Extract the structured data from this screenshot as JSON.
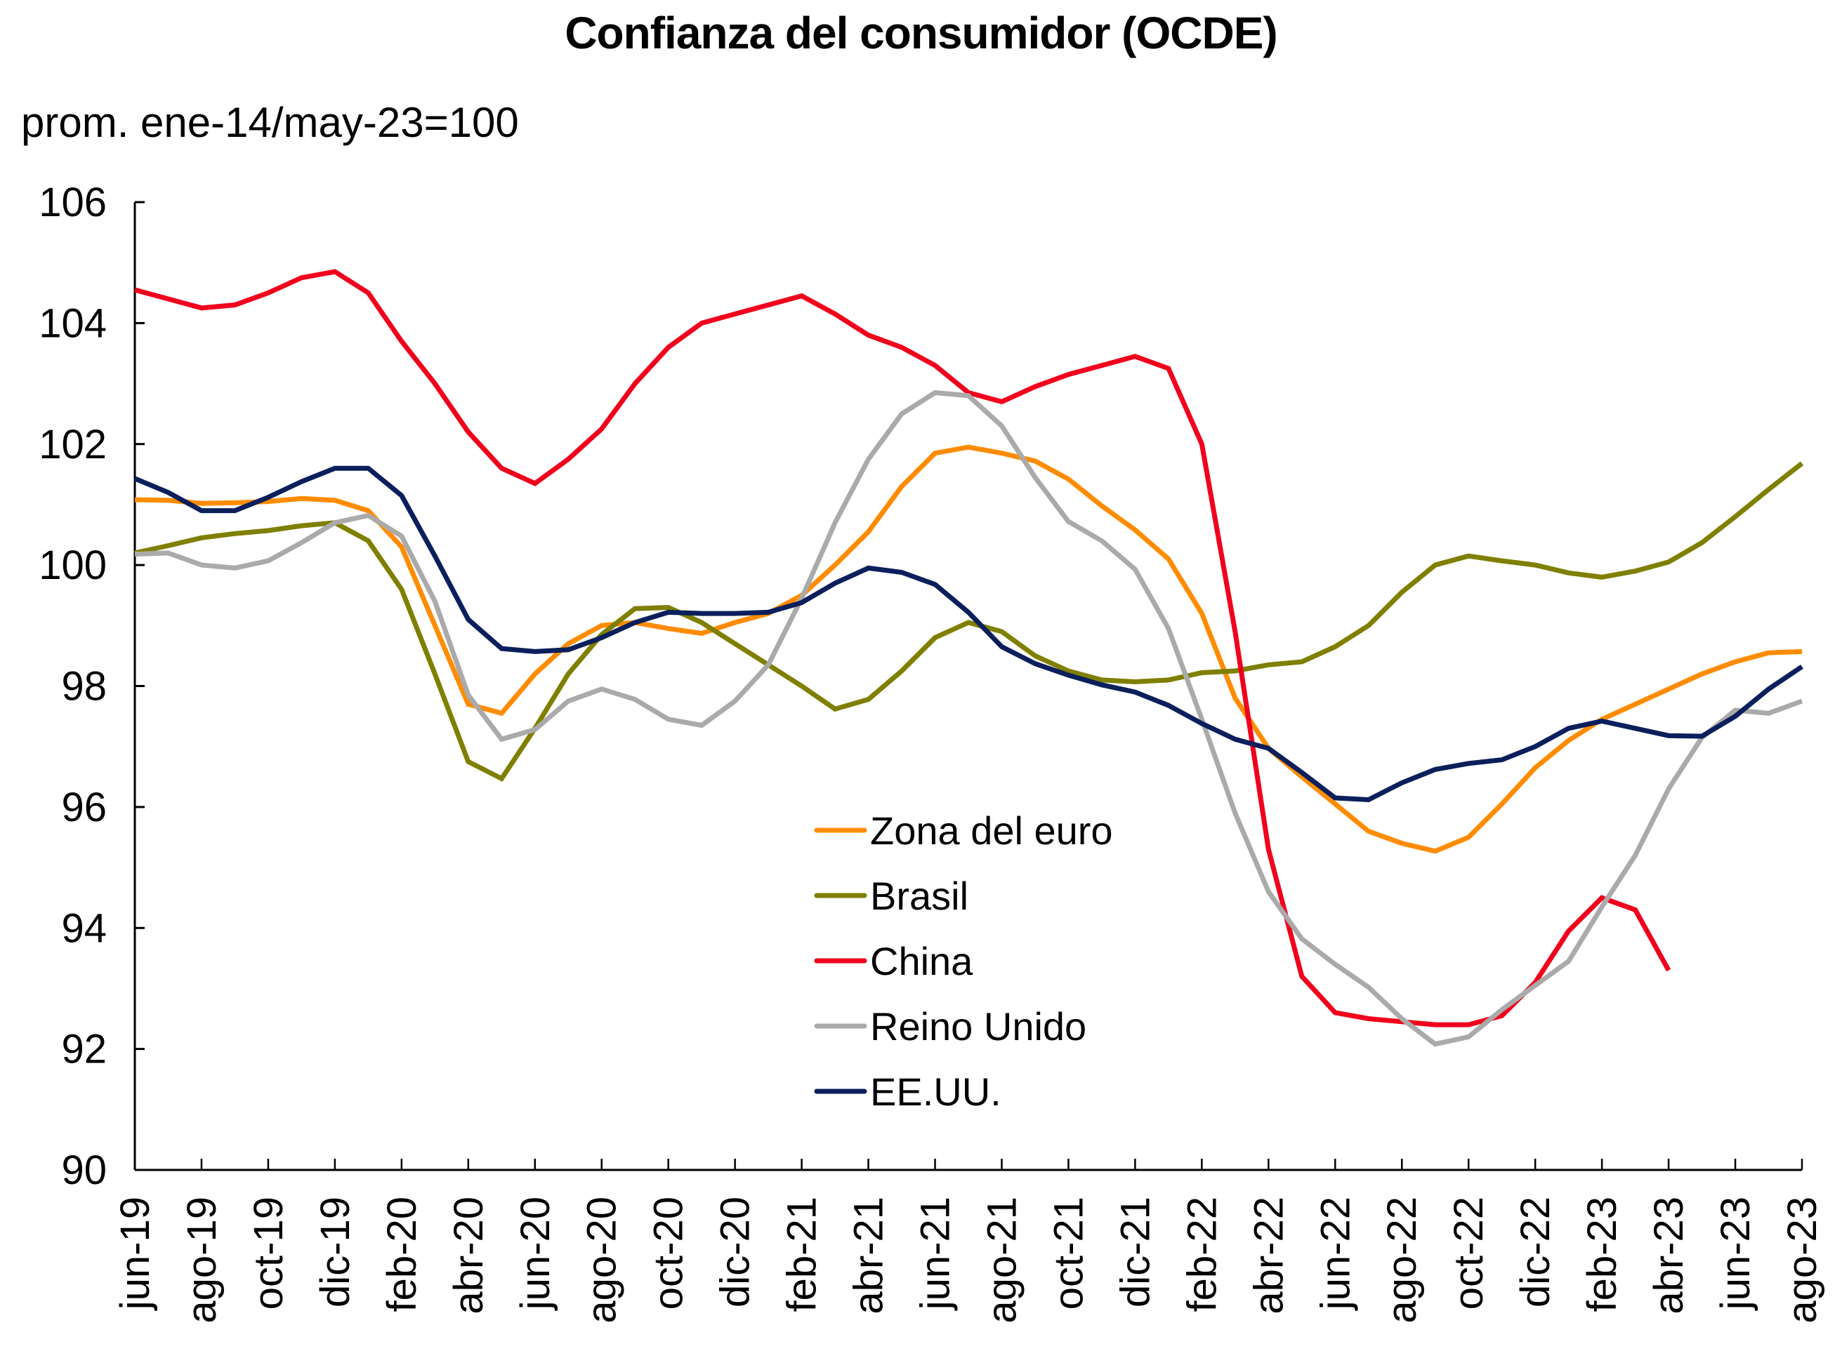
{
  "chart_data": {
    "type": "line",
    "title": "Confianza del consumidor (OCDE)",
    "subtitle": "prom. ene-14/may-23=100",
    "xlabel": "",
    "ylabel": "prom. ene-14/may-23=100",
    "ylim": [
      90,
      106
    ],
    "yticks": [
      90,
      92,
      94,
      96,
      98,
      100,
      102,
      104,
      106
    ],
    "grid": false,
    "legend_position": "center-right inside plot",
    "x": [
      "jun-19",
      "jul-19",
      "ago-19",
      "sep-19",
      "oct-19",
      "nov-19",
      "dic-19",
      "ene-20",
      "feb-20",
      "mar-20",
      "abr-20",
      "may-20",
      "jun-20",
      "jul-20",
      "ago-20",
      "sep-20",
      "oct-20",
      "nov-20",
      "dic-20",
      "ene-21",
      "feb-21",
      "mar-21",
      "abr-21",
      "may-21",
      "jun-21",
      "jul-21",
      "ago-21",
      "sep-21",
      "oct-21",
      "nov-21",
      "dic-21",
      "ene-22",
      "feb-22",
      "mar-22",
      "abr-22",
      "may-22",
      "jun-22",
      "jul-22",
      "ago-22",
      "sep-22",
      "oct-22",
      "nov-22",
      "dic-22",
      "ene-23",
      "feb-23",
      "mar-23",
      "abr-23",
      "may-23",
      "jun-23",
      "jul-23",
      "ago-23"
    ],
    "xtick_labels": [
      "jun-19",
      "ago-19",
      "oct-19",
      "dic-19",
      "feb-20",
      "abr-20",
      "jun-20",
      "ago-20",
      "oct-20",
      "dic-20",
      "feb-21",
      "abr-21",
      "jun-21",
      "ago-21",
      "oct-21",
      "dic-21",
      "feb-22",
      "abr-22",
      "jun-22",
      "ago-22",
      "oct-22",
      "dic-22",
      "feb-23",
      "abr-23",
      "jun-23",
      "ago-23"
    ],
    "series": [
      {
        "name": "Zona del euro",
        "color": "#FF8C00",
        "values": [
          101.08,
          101.07,
          101.02,
          101.03,
          101.05,
          101.1,
          101.07,
          100.9,
          100.3,
          99.0,
          97.7,
          97.55,
          98.2,
          98.7,
          99.0,
          99.05,
          98.95,
          98.87,
          99.05,
          99.2,
          99.5,
          100.0,
          100.55,
          101.3,
          101.85,
          101.95,
          101.85,
          101.72,
          101.42,
          100.98,
          100.58,
          100.1,
          99.2,
          97.8,
          96.97,
          96.5,
          96.05,
          95.6,
          95.4,
          95.27,
          95.5,
          96.05,
          96.65,
          97.1,
          97.45,
          97.7,
          97.95,
          98.2,
          98.4,
          98.55,
          98.57
        ]
      },
      {
        "name": "Brasil",
        "color": "#7F7F00",
        "values": [
          100.2,
          100.32,
          100.45,
          100.52,
          100.57,
          100.65,
          100.7,
          100.4,
          99.6,
          98.2,
          96.75,
          96.47,
          97.3,
          98.2,
          98.85,
          99.28,
          99.3,
          99.05,
          98.7,
          98.35,
          98.0,
          97.62,
          97.78,
          98.25,
          98.8,
          99.05,
          98.9,
          98.5,
          98.25,
          98.1,
          98.07,
          98.1,
          98.22,
          98.25,
          98.35,
          98.4,
          98.65,
          99.0,
          99.55,
          100.0,
          100.15,
          100.07,
          100.0,
          99.87,
          99.8,
          99.9,
          100.05,
          100.37,
          100.8,
          101.25,
          101.68
        ]
      },
      {
        "name": "China",
        "color": "#F0001C",
        "values": [
          104.55,
          104.4,
          104.25,
          104.3,
          104.5,
          104.75,
          104.85,
          104.5,
          103.7,
          103.0,
          102.2,
          101.6,
          101.35,
          101.75,
          102.25,
          103.0,
          103.6,
          104.0,
          104.15,
          104.3,
          104.45,
          104.15,
          103.8,
          103.6,
          103.3,
          102.85,
          102.7,
          102.95,
          103.15,
          103.3,
          103.45,
          103.25,
          102.0,
          98.9,
          95.3,
          93.2,
          92.6,
          92.5,
          92.45,
          92.4,
          92.4,
          92.55,
          93.1,
          93.95,
          94.5,
          94.3,
          93.3,
          null,
          null,
          null,
          null
        ]
      },
      {
        "name": "Reino Unido",
        "color": "#AAAAAA",
        "values": [
          100.18,
          100.2,
          100.0,
          99.95,
          100.07,
          100.37,
          100.7,
          100.82,
          100.48,
          99.4,
          97.85,
          97.12,
          97.28,
          97.75,
          97.95,
          97.78,
          97.45,
          97.35,
          97.75,
          98.35,
          99.45,
          100.7,
          101.75,
          102.5,
          102.85,
          102.8,
          102.3,
          101.45,
          100.72,
          100.4,
          99.93,
          98.95,
          97.45,
          95.9,
          94.6,
          93.82,
          93.4,
          93.02,
          92.5,
          92.08,
          92.2,
          92.65,
          93.05,
          93.45,
          94.35,
          95.2,
          96.3,
          97.15,
          97.6,
          97.55,
          97.75
        ]
      },
      {
        "name": "EE.UU.",
        "color": "#0B1F5C",
        "values": [
          101.43,
          101.2,
          100.9,
          100.9,
          101.12,
          101.38,
          101.6,
          101.6,
          101.15,
          100.15,
          99.1,
          98.62,
          98.57,
          98.6,
          98.8,
          99.05,
          99.22,
          99.2,
          99.2,
          99.22,
          99.38,
          99.7,
          99.95,
          99.88,
          99.68,
          99.22,
          98.65,
          98.37,
          98.18,
          98.02,
          97.9,
          97.68,
          97.38,
          97.12,
          96.97,
          96.57,
          96.15,
          96.12,
          96.4,
          96.62,
          96.72,
          96.78,
          97.0,
          97.3,
          97.42,
          97.3,
          97.18,
          97.17,
          97.5,
          97.95,
          98.32
        ]
      }
    ]
  }
}
